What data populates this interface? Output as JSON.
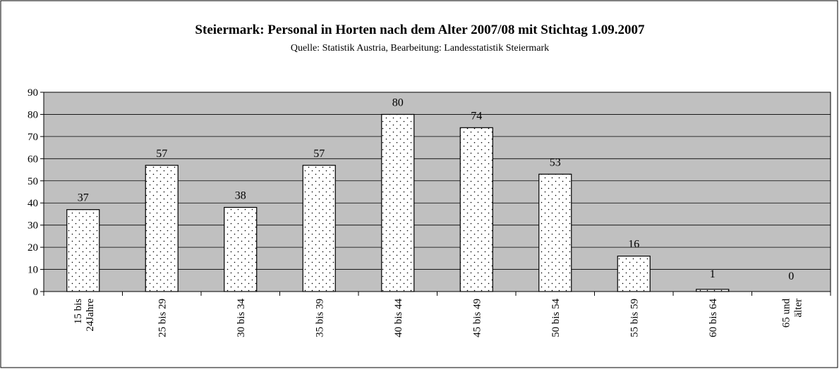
{
  "chart_data": {
    "type": "bar",
    "title": "Steiermark: Personal in Horten nach dem Alter 2007/08 mit Stichtag 1.09.2007",
    "subtitle": "Quelle: Statistik Austria, Bearbeitung: Landesstatistik Steiermark",
    "categories": [
      "15 bis 24Jahre",
      "25 bis 29",
      "30 bis 34",
      "35 bis 39",
      "40 bis 44",
      "45 bis 49",
      "50 bis 54",
      "55 bis 59",
      "60 bis 64",
      "65 und älter"
    ],
    "values": [
      37,
      57,
      38,
      57,
      80,
      74,
      53,
      16,
      1,
      0
    ],
    "color": "#ffffff",
    "ylim": [
      0,
      90
    ],
    "yticks": [
      0,
      10,
      20,
      30,
      40,
      50,
      60,
      70,
      80,
      90
    ],
    "grid": true
  }
}
